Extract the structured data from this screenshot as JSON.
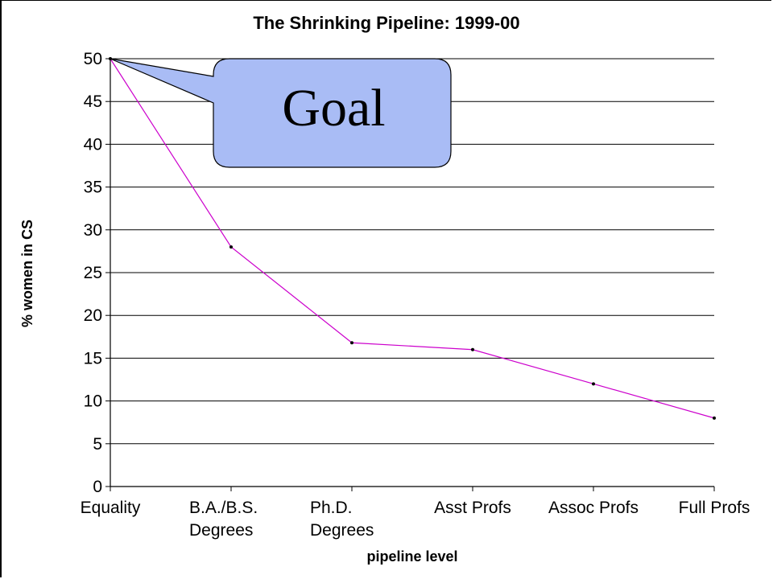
{
  "chart_data": {
    "type": "line",
    "title": "The Shrinking Pipeline: 1999-00",
    "xlabel": "pipeline level",
    "ylabel": "% women in CS",
    "categories": [
      [
        "Equality"
      ],
      [
        "B.A./B.S.",
        "Degrees"
      ],
      [
        "Ph.D.",
        "Degrees"
      ],
      [
        "Asst Profs"
      ],
      [
        "Assoc Profs"
      ],
      [
        "Full Profs"
      ]
    ],
    "series": [
      {
        "values": [
          50,
          28,
          16.8,
          16,
          12,
          8
        ],
        "color": "#cc00cc"
      }
    ],
    "ylim": [
      0,
      50
    ],
    "yticks": [
      0,
      5,
      10,
      15,
      20,
      25,
      30,
      35,
      40,
      45,
      50
    ],
    "grid": true,
    "legend": "none",
    "annotation": {
      "text": "Goal",
      "fill": "#a9bcf5",
      "points_to_category": "Equality",
      "points_to_value": 50
    }
  }
}
